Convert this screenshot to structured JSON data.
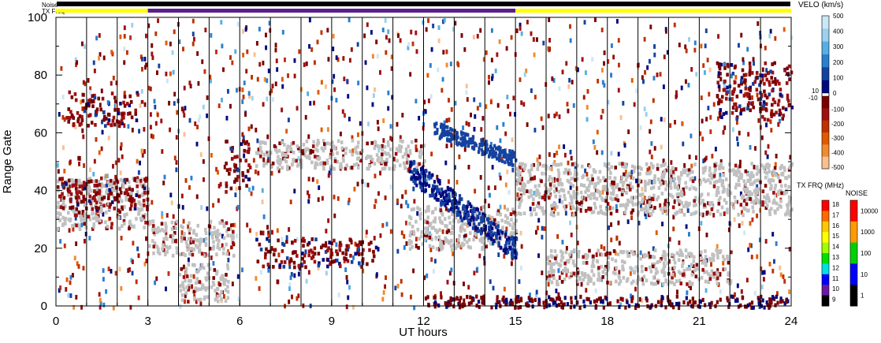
{
  "chart_data": {
    "type": "heatmap",
    "xlabel": "UT hours",
    "ylabel": "Range Gate",
    "xlim": [
      0,
      24
    ],
    "ylim": [
      0,
      100
    ],
    "x_ticks": [
      "0",
      "3",
      "6",
      "9",
      "12",
      "15",
      "18",
      "21",
      "24"
    ],
    "y_ticks": [
      "0",
      "20",
      "40",
      "60",
      "80",
      "100"
    ],
    "status_bars": {
      "noise_label": "Noise",
      "txfreq_label": "TX Freq",
      "txfreq_segments": [
        {
          "start": 0,
          "end": 3,
          "color": "#ffff00"
        },
        {
          "start": 3,
          "end": 15,
          "color": "#5a1f8a"
        },
        {
          "start": 15,
          "end": 24,
          "color": "#ffff00"
        }
      ]
    },
    "ground_scatter_color": "#c0c0c0",
    "scatter_regions": [
      {
        "t0": 0.0,
        "t1": 3.0,
        "g0": 27,
        "g1": 45,
        "kind": "ground"
      },
      {
        "t0": 0.3,
        "t1": 2.8,
        "g0": 63,
        "g1": 75,
        "kind": "negative"
      },
      {
        "t0": 0.0,
        "t1": 3.0,
        "g0": 33,
        "g1": 45,
        "kind": "negative"
      },
      {
        "t0": 3.0,
        "t1": 5.8,
        "g0": 18,
        "g1": 30,
        "kind": "ground"
      },
      {
        "t0": 4.0,
        "t1": 5.6,
        "g0": 2,
        "g1": 15,
        "kind": "ground"
      },
      {
        "t0": 5.5,
        "t1": 6.3,
        "g0": 40,
        "g1": 58,
        "kind": "negative"
      },
      {
        "t0": 6.5,
        "t1": 12.0,
        "g0": 48,
        "g1": 58,
        "kind": "ground"
      },
      {
        "t0": 6.5,
        "t1": 10.5,
        "g0": 14,
        "g1": 24,
        "kind": "negative"
      },
      {
        "t0": 11.5,
        "t1": 15.0,
        "g0": 20,
        "g1": 35,
        "kind": "ground"
      },
      {
        "t0": 15.0,
        "t1": 24.0,
        "g0": 32,
        "g1": 50,
        "kind": "ground"
      },
      {
        "t0": 16.0,
        "t1": 22.0,
        "g0": 8,
        "g1": 20,
        "kind": "ground"
      },
      {
        "t0": 21.5,
        "t1": 24.0,
        "g0": 65,
        "g1": 85,
        "kind": "negative"
      }
    ],
    "velocity_colorbar": {
      "title": "VELO (km/s)",
      "positive_ticks": [
        "500",
        "400",
        "300",
        "200",
        "100",
        "0"
      ],
      "negative_ticks": [
        "-100",
        "-200",
        "-300",
        "-400",
        "-500"
      ],
      "zero_labels": [
        "10",
        "-10"
      ],
      "colors_positive": [
        "#cde6f5",
        "#9bd0ef",
        "#57aee3",
        "#2a7fcf",
        "#1542a0",
        "#000a80"
      ],
      "colors_negative": [
        "#7a0000",
        "#9e1010",
        "#c03000",
        "#e05a00",
        "#f08a30",
        "#f8c090"
      ]
    },
    "txfreq_colorbar": {
      "title": "TX FRQ (MHz)",
      "ticks": [
        "18",
        "17",
        "16",
        "15",
        "14",
        "13",
        "12",
        "11",
        "10",
        "9"
      ],
      "colors": [
        "#ff0000",
        "#ff6a00",
        "#ffc800",
        "#ffff00",
        "#a0ff00",
        "#00e000",
        "#00e0e0",
        "#0000ff",
        "#6a1aa0",
        "#000000"
      ]
    },
    "noise_colorbar": {
      "title": "NOISE",
      "ticks": [
        "10000",
        "1000",
        "100",
        "10",
        "1"
      ],
      "colors": [
        "#ff0000",
        "#ff9a00",
        "#00d000",
        "#0000ff",
        "#000000"
      ]
    }
  }
}
